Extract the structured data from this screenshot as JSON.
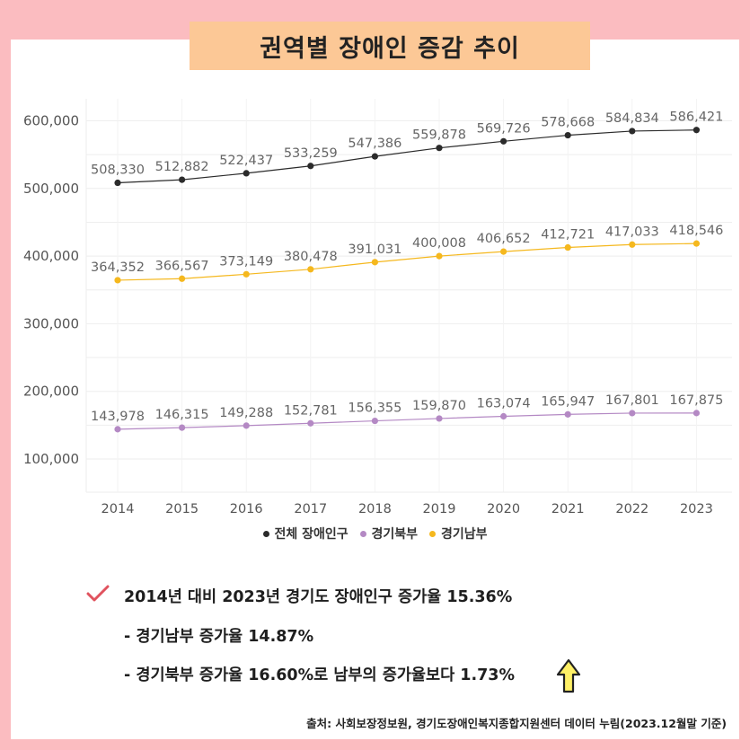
{
  "title": "권역별 장애인 증감 추이",
  "chart_data": {
    "type": "line",
    "categories": [
      "2014",
      "2015",
      "2016",
      "2017",
      "2018",
      "2019",
      "2020",
      "2021",
      "2022",
      "2023"
    ],
    "series": [
      {
        "name": "전체 장애인구",
        "color": "#2b2b2b",
        "values": [
          508330,
          512882,
          522437,
          533259,
          547386,
          559878,
          569726,
          578668,
          584834,
          586421
        ],
        "labels": [
          "508,330",
          "512,882",
          "522,437",
          "533,259",
          "547,386",
          "559,878",
          "569,726",
          "578,668",
          "584,834",
          "586,421"
        ]
      },
      {
        "name": "경기북부",
        "color": "#b489c4",
        "values": [
          143978,
          146315,
          149288,
          152781,
          156355,
          159870,
          163074,
          165947,
          167801,
          167875
        ],
        "labels": [
          "143,978",
          "146,315",
          "149,288",
          "152,781",
          "156,355",
          "159,870",
          "163,074",
          "165,947",
          "167,801",
          "167,875"
        ]
      },
      {
        "name": "경기남부",
        "color": "#f5b81e",
        "values": [
          364352,
          366567,
          373149,
          380478,
          391031,
          400008,
          406652,
          412721,
          417033,
          418546
        ],
        "labels": [
          "364,352",
          "366,567",
          "373,149",
          "380,478",
          "391,031",
          "400,008",
          "406,652",
          "412,721",
          "417,033",
          "418,546"
        ]
      }
    ],
    "yticks": [
      100000,
      200000,
      300000,
      400000,
      500000,
      600000
    ],
    "ytick_labels": [
      "100,000",
      "200,000",
      "300,000",
      "400,000",
      "500,000",
      "600,000"
    ],
    "ylim": [
      50000,
      600000
    ],
    "grid": true,
    "legend_position": "bottom"
  },
  "notes": {
    "line1": "2014년 대비 2023년 경기도 장애인구 증가율 15.36%",
    "line2": "- 경기남부 증가율 14.87%",
    "line3": "- 경기북부 증가율 16.60%로 남부의 증가율보다 1.73%"
  },
  "icons": {
    "check": "check-icon",
    "arrow": "up-arrow-icon"
  },
  "source": "출처: 사회보장정보원, 경기도장애인복지종합지원센터 데이터 누림(2023.12월말 기준)"
}
